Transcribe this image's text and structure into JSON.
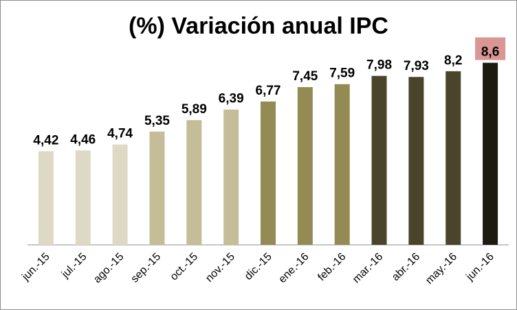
{
  "chart_data": {
    "type": "bar",
    "title": "(%) Variación anual IPC",
    "xlabel": "",
    "ylabel": "",
    "grid": false,
    "legend": "none",
    "ylim": [
      0,
      9.2
    ],
    "categories": [
      "jun.-15",
      "jul.-15",
      "ago.-15",
      "sep.-15",
      "oct.-15",
      "nov.-15",
      "dic.-15",
      "ene.-16",
      "feb.-16",
      "mar.-16",
      "abr.-16",
      "may.-16",
      "jun.-16"
    ],
    "values": [
      4.42,
      4.46,
      4.74,
      5.35,
      5.89,
      6.39,
      6.77,
      7.45,
      7.59,
      7.98,
      7.93,
      8.2,
      8.6
    ],
    "value_labels": [
      "4,42",
      "4,46",
      "4,74",
      "5,35",
      "5,89",
      "6,39",
      "6,77",
      "7,45",
      "7,59",
      "7,98",
      "7,93",
      "8,2",
      "8,6"
    ],
    "bar_colors": [
      "#ddd9c4",
      "#ddd9c4",
      "#ddd9c4",
      "#c4bd97",
      "#c4bd97",
      "#c4bd97",
      "#948a54",
      "#948a54",
      "#948a54",
      "#4a452a",
      "#4a452a",
      "#4a452a",
      "#1d1b10"
    ],
    "highlight_color": "#d99694",
    "highlight_index": 12
  }
}
